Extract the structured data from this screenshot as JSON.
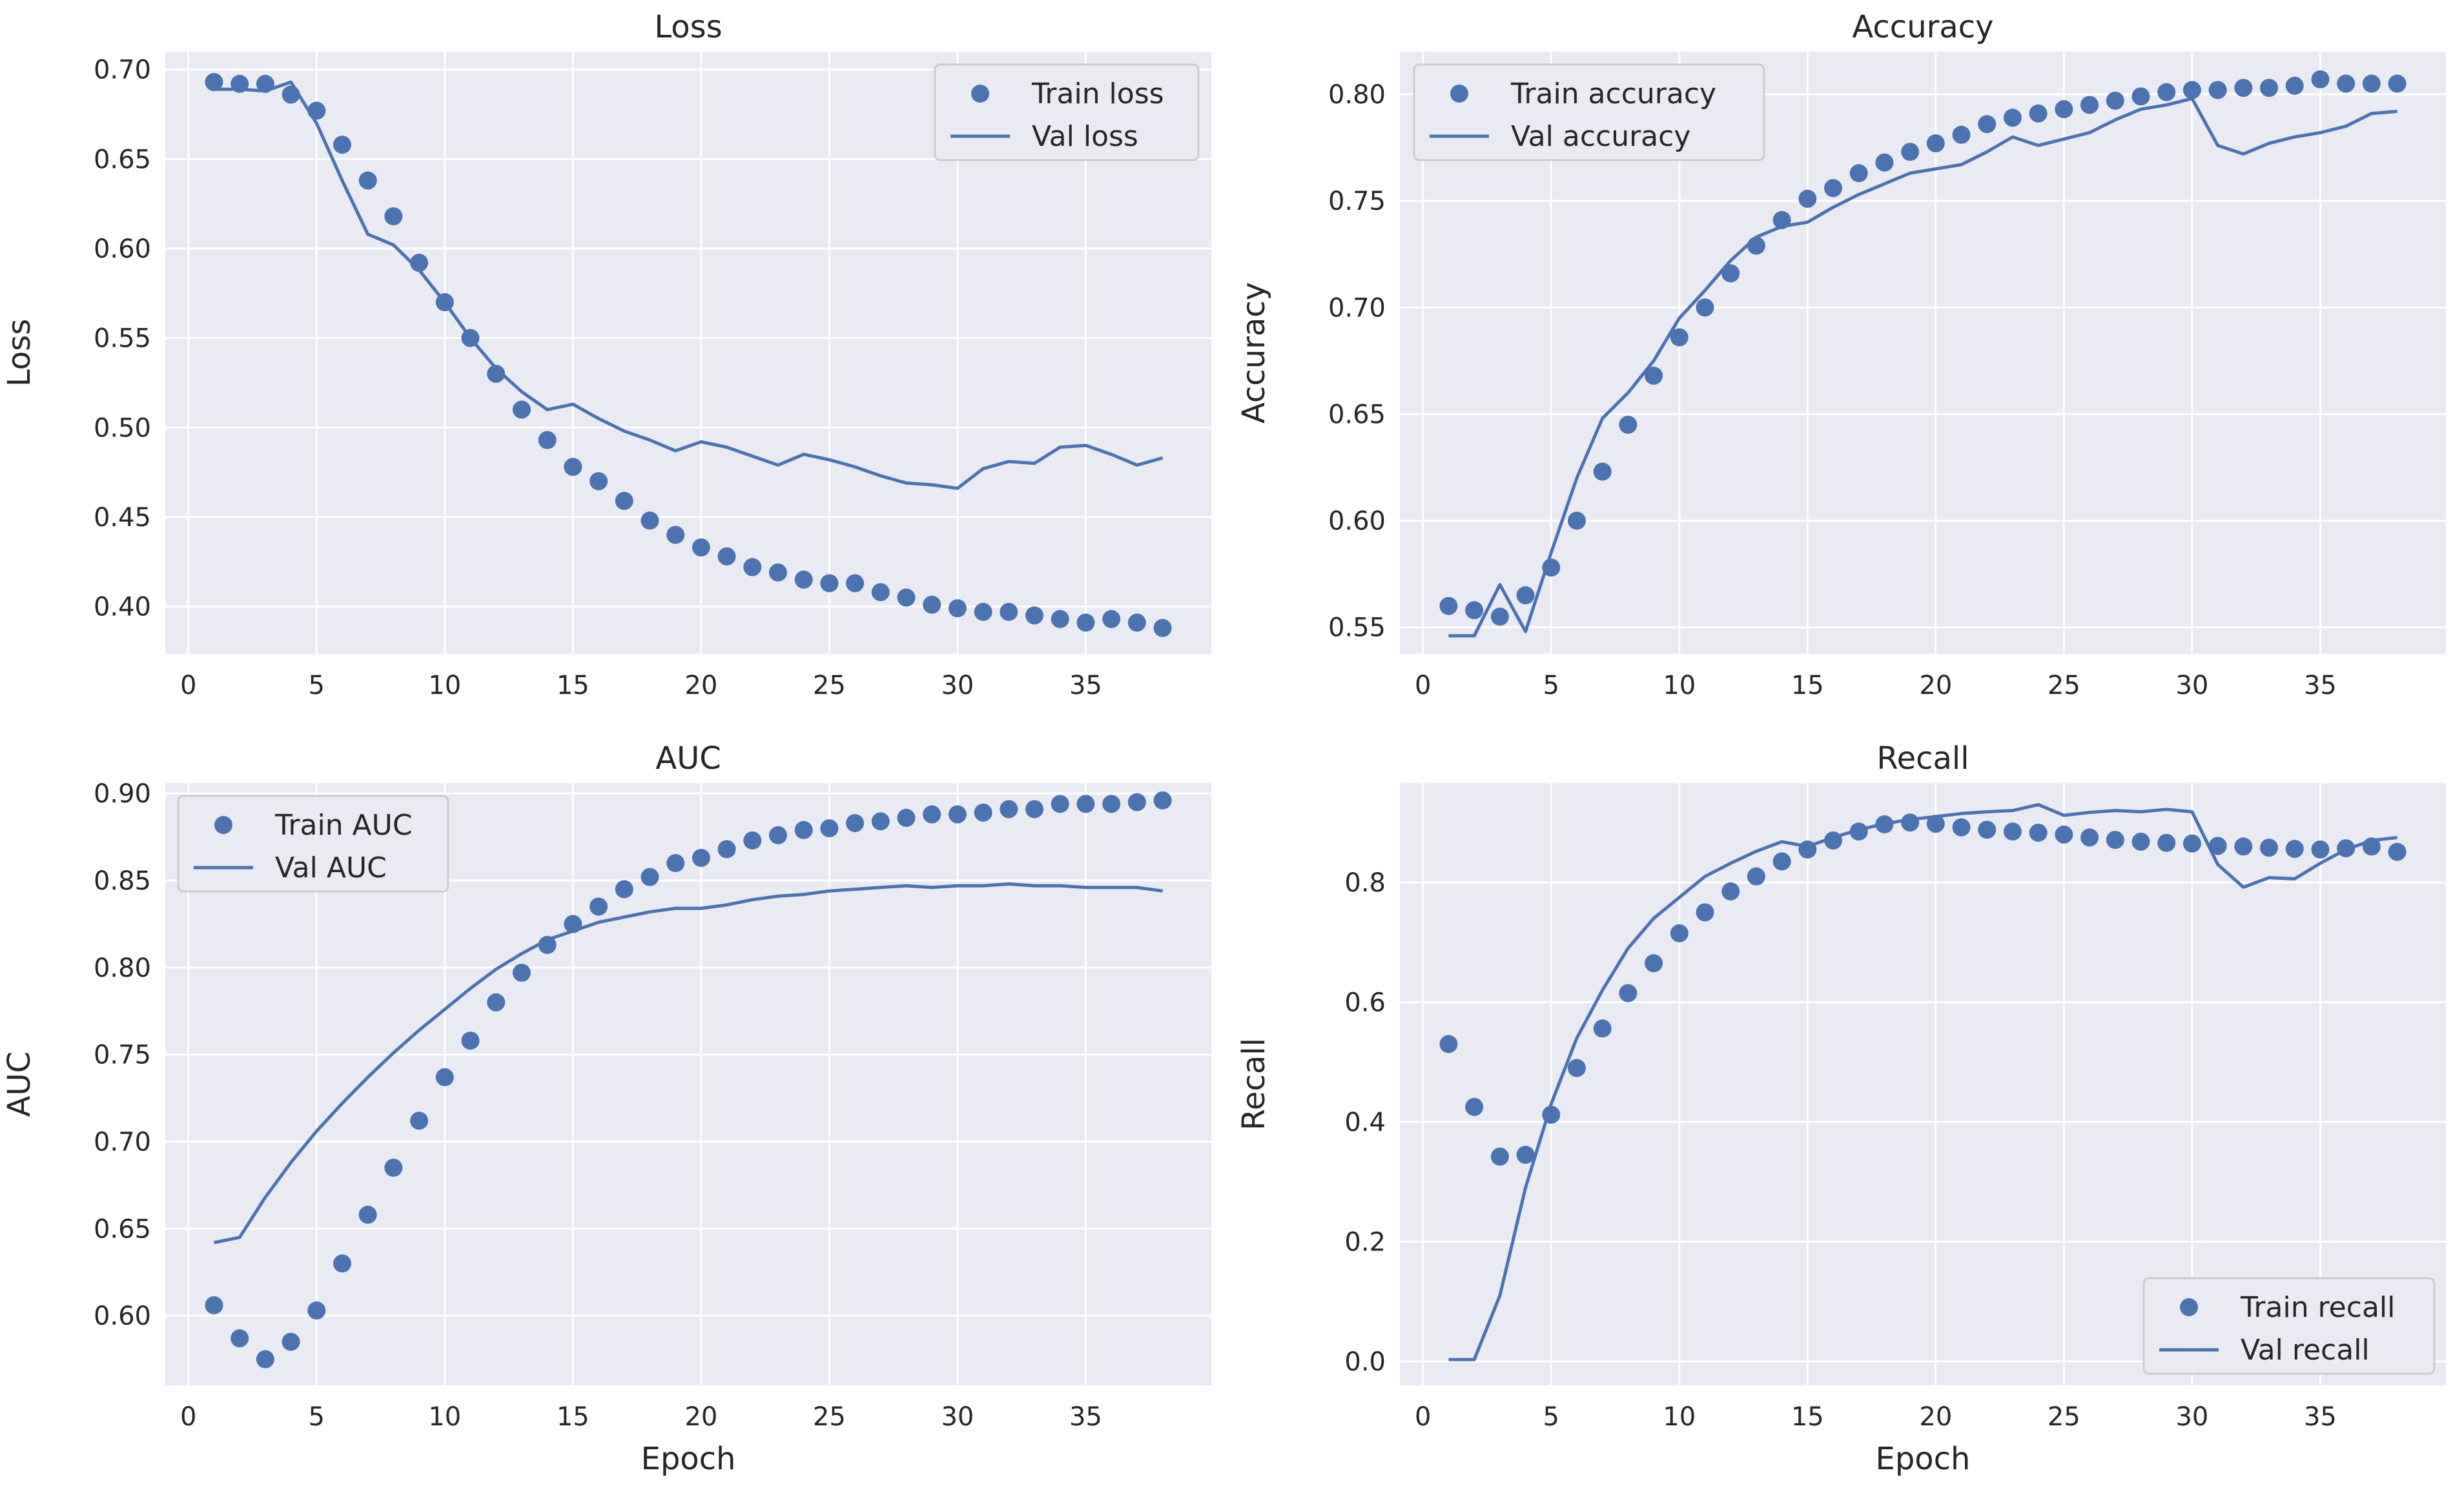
{
  "figure": {
    "background": "#ffffff",
    "axes_background": "#EAEAF2",
    "grid_color": "#ffffff",
    "series_color": "#4C72B0"
  },
  "chart_data": [
    {
      "id": "loss",
      "type": "line",
      "title": "Loss",
      "xlabel": "",
      "ylabel": "Loss",
      "xlim": [
        -0.9,
        39.9
      ],
      "ylim": [
        0.3735,
        0.71
      ],
      "xticks": [
        0,
        5,
        10,
        15,
        20,
        25,
        30,
        35
      ],
      "xtick_labels": [
        "0",
        "5",
        "10",
        "15",
        "20",
        "25",
        "30",
        "35"
      ],
      "yticks": [
        0.4,
        0.45,
        0.5,
        0.55,
        0.6,
        0.65,
        0.7
      ],
      "ytick_labels": [
        "0.40",
        "0.45",
        "0.50",
        "0.55",
        "0.60",
        "0.65",
        "0.70"
      ],
      "legend_position": "top-right",
      "x": [
        1,
        2,
        3,
        4,
        5,
        6,
        7,
        8,
        9,
        10,
        11,
        12,
        13,
        14,
        15,
        16,
        17,
        18,
        19,
        20,
        21,
        22,
        23,
        24,
        25,
        26,
        27,
        28,
        29,
        30,
        31,
        32,
        33,
        34,
        35,
        36,
        37,
        38
      ],
      "series": [
        {
          "name": "Train loss",
          "style": "dots",
          "values": [
            0.693,
            0.692,
            0.692,
            0.686,
            0.677,
            0.658,
            0.638,
            0.618,
            0.592,
            0.57,
            0.55,
            0.53,
            0.51,
            0.493,
            0.478,
            0.47,
            0.459,
            0.448,
            0.44,
            0.433,
            0.428,
            0.422,
            0.419,
            0.415,
            0.413,
            0.413,
            0.408,
            0.405,
            0.401,
            0.399,
            0.397,
            0.397,
            0.395,
            0.393,
            0.391,
            0.393,
            0.391,
            0.388
          ]
        },
        {
          "name": "Val loss",
          "style": "line",
          "values": [
            0.689,
            0.689,
            0.688,
            0.693,
            0.67,
            0.638,
            0.608,
            0.602,
            0.588,
            0.57,
            0.55,
            0.533,
            0.52,
            0.51,
            0.513,
            0.505,
            0.498,
            0.493,
            0.487,
            0.492,
            0.489,
            0.484,
            0.479,
            0.485,
            0.482,
            0.478,
            0.473,
            0.469,
            0.468,
            0.466,
            0.477,
            0.481,
            0.48,
            0.489,
            0.49,
            0.485,
            0.479,
            0.483
          ]
        }
      ]
    },
    {
      "id": "accuracy",
      "type": "line",
      "title": "Accuracy",
      "xlabel": "",
      "ylabel": "Accuracy",
      "xlim": [
        -0.9,
        39.9
      ],
      "ylim": [
        0.5375,
        0.82
      ],
      "xticks": [
        0,
        5,
        10,
        15,
        20,
        25,
        30,
        35
      ],
      "xtick_labels": [
        "0",
        "5",
        "10",
        "15",
        "20",
        "25",
        "30",
        "35"
      ],
      "yticks": [
        0.55,
        0.6,
        0.65,
        0.7,
        0.75,
        0.8
      ],
      "ytick_labels": [
        "0.55",
        "0.60",
        "0.65",
        "0.70",
        "0.75",
        "0.80"
      ],
      "legend_position": "top-left",
      "x": [
        1,
        2,
        3,
        4,
        5,
        6,
        7,
        8,
        9,
        10,
        11,
        12,
        13,
        14,
        15,
        16,
        17,
        18,
        19,
        20,
        21,
        22,
        23,
        24,
        25,
        26,
        27,
        28,
        29,
        30,
        31,
        32,
        33,
        34,
        35,
        36,
        37,
        38
      ],
      "series": [
        {
          "name": "Train accuracy",
          "style": "dots",
          "values": [
            0.56,
            0.558,
            0.555,
            0.565,
            0.578,
            0.6,
            0.623,
            0.645,
            0.668,
            0.686,
            0.7,
            0.716,
            0.729,
            0.741,
            0.751,
            0.756,
            0.763,
            0.768,
            0.773,
            0.777,
            0.781,
            0.786,
            0.789,
            0.791,
            0.793,
            0.795,
            0.797,
            0.799,
            0.801,
            0.802,
            0.802,
            0.803,
            0.803,
            0.804,
            0.807,
            0.805,
            0.805,
            0.805
          ]
        },
        {
          "name": "Val accuracy",
          "style": "line",
          "values": [
            0.546,
            0.546,
            0.57,
            0.548,
            0.585,
            0.62,
            0.648,
            0.66,
            0.675,
            0.695,
            0.708,
            0.722,
            0.733,
            0.738,
            0.74,
            0.747,
            0.753,
            0.758,
            0.763,
            0.765,
            0.767,
            0.773,
            0.78,
            0.776,
            0.779,
            0.782,
            0.788,
            0.793,
            0.795,
            0.798,
            0.776,
            0.772,
            0.777,
            0.78,
            0.782,
            0.785,
            0.791,
            0.792
          ]
        }
      ]
    },
    {
      "id": "auc",
      "type": "line",
      "title": "AUC",
      "xlabel": "Epoch",
      "ylabel": "AUC",
      "xlim": [
        -0.9,
        39.9
      ],
      "ylim": [
        0.56,
        0.906
      ],
      "xticks": [
        0,
        5,
        10,
        15,
        20,
        25,
        30,
        35
      ],
      "xtick_labels": [
        "0",
        "5",
        "10",
        "15",
        "20",
        "25",
        "30",
        "35"
      ],
      "yticks": [
        0.6,
        0.65,
        0.7,
        0.75,
        0.8,
        0.85,
        0.9
      ],
      "ytick_labels": [
        "0.60",
        "0.65",
        "0.70",
        "0.75",
        "0.80",
        "0.85",
        "0.90"
      ],
      "legend_position": "top-left",
      "x": [
        1,
        2,
        3,
        4,
        5,
        6,
        7,
        8,
        9,
        10,
        11,
        12,
        13,
        14,
        15,
        16,
        17,
        18,
        19,
        20,
        21,
        22,
        23,
        24,
        25,
        26,
        27,
        28,
        29,
        30,
        31,
        32,
        33,
        34,
        35,
        36,
        37,
        38
      ],
      "series": [
        {
          "name": "Train AUC",
          "style": "dots",
          "values": [
            0.606,
            0.587,
            0.575,
            0.585,
            0.603,
            0.63,
            0.658,
            0.685,
            0.712,
            0.737,
            0.758,
            0.78,
            0.797,
            0.813,
            0.825,
            0.835,
            0.845,
            0.852,
            0.86,
            0.863,
            0.868,
            0.873,
            0.876,
            0.879,
            0.88,
            0.883,
            0.884,
            0.886,
            0.888,
            0.888,
            0.889,
            0.891,
            0.891,
            0.894,
            0.894,
            0.894,
            0.895,
            0.896
          ]
        },
        {
          "name": "Val AUC",
          "style": "line",
          "values": [
            0.642,
            0.645,
            0.668,
            0.688,
            0.706,
            0.722,
            0.737,
            0.751,
            0.764,
            0.776,
            0.788,
            0.799,
            0.808,
            0.816,
            0.821,
            0.826,
            0.829,
            0.832,
            0.834,
            0.834,
            0.836,
            0.839,
            0.841,
            0.842,
            0.844,
            0.845,
            0.846,
            0.847,
            0.846,
            0.847,
            0.847,
            0.848,
            0.847,
            0.847,
            0.846,
            0.846,
            0.846,
            0.844
          ]
        }
      ]
    },
    {
      "id": "recall",
      "type": "line",
      "title": "Recall",
      "xlabel": "Epoch",
      "ylabel": "Recall",
      "xlim": [
        -0.9,
        39.9
      ],
      "ylim": [
        -0.04,
        0.966
      ],
      "xticks": [
        0,
        5,
        10,
        15,
        20,
        25,
        30,
        35
      ],
      "xtick_labels": [
        "0",
        "5",
        "10",
        "15",
        "20",
        "25",
        "30",
        "35"
      ],
      "yticks": [
        0.0,
        0.2,
        0.4,
        0.6,
        0.8
      ],
      "ytick_labels": [
        "0.0",
        "0.2",
        "0.4",
        "0.6",
        "0.8"
      ],
      "legend_position": "bottom-right",
      "x": [
        1,
        2,
        3,
        4,
        5,
        6,
        7,
        8,
        9,
        10,
        11,
        12,
        13,
        14,
        15,
        16,
        17,
        18,
        19,
        20,
        21,
        22,
        23,
        24,
        25,
        26,
        27,
        28,
        29,
        30,
        31,
        32,
        33,
        34,
        35,
        36,
        37,
        38
      ],
      "series": [
        {
          "name": "Train recall",
          "style": "dots",
          "values": [
            0.53,
            0.425,
            0.342,
            0.345,
            0.412,
            0.49,
            0.556,
            0.615,
            0.665,
            0.715,
            0.75,
            0.785,
            0.81,
            0.835,
            0.855,
            0.87,
            0.885,
            0.897,
            0.9,
            0.898,
            0.892,
            0.888,
            0.885,
            0.883,
            0.88,
            0.875,
            0.871,
            0.868,
            0.866,
            0.865,
            0.861,
            0.86,
            0.858,
            0.856,
            0.855,
            0.857,
            0.86,
            0.851
          ]
        },
        {
          "name": "Val recall",
          "style": "line",
          "values": [
            0.003,
            0.003,
            0.11,
            0.29,
            0.43,
            0.54,
            0.62,
            0.69,
            0.74,
            0.775,
            0.81,
            0.832,
            0.852,
            0.868,
            0.86,
            0.875,
            0.888,
            0.898,
            0.905,
            0.91,
            0.915,
            0.918,
            0.92,
            0.93,
            0.912,
            0.917,
            0.92,
            0.918,
            0.922,
            0.918,
            0.83,
            0.792,
            0.808,
            0.806,
            0.832,
            0.855,
            0.87,
            0.875
          ]
        }
      ]
    }
  ]
}
